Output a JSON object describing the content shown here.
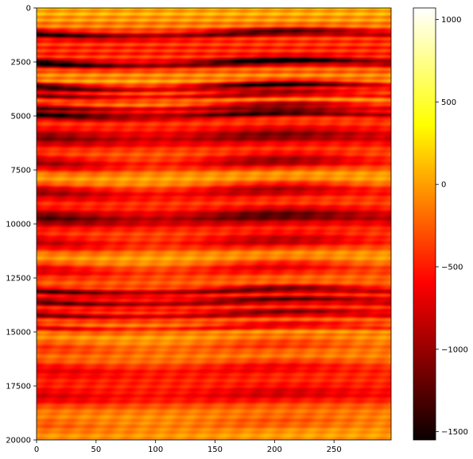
{
  "chart_data": {
    "type": "heatmap",
    "title": "",
    "xlabel": "",
    "ylabel": "",
    "colormap": "hot",
    "x_range": [
      0,
      298
    ],
    "y_range": [
      0,
      20000
    ],
    "y_axis_inverted": true,
    "x_ticks": [
      0,
      50,
      100,
      150,
      200,
      250
    ],
    "x_tick_labels": [
      "0",
      "50",
      "100",
      "150",
      "200",
      "250"
    ],
    "y_ticks": [
      0,
      2500,
      5000,
      7500,
      10000,
      12500,
      15000,
      17500,
      20000
    ],
    "y_tick_labels": [
      "0",
      "2500",
      "5000",
      "7500",
      "10000",
      "12500",
      "15000",
      "17500",
      "20000"
    ],
    "colorbar": {
      "min": -1550,
      "max": 1070,
      "ticks": [
        1000,
        500,
        0,
        -500,
        -1000,
        -1500
      ],
      "tick_labels": [
        "1000",
        "500",
        "0",
        "−500",
        "−1000",
        "−1500"
      ]
    },
    "bands": [
      {
        "y": 1200,
        "value": -1100
      },
      {
        "y": 2550,
        "value": -1300
      },
      {
        "y": 3650,
        "value": -1500
      },
      {
        "y": 4050,
        "value": -1100
      },
      {
        "y": 4600,
        "value": -1000
      },
      {
        "y": 4950,
        "value": -1200
      },
      {
        "y": 6000,
        "value": -650
      },
      {
        "y": 7200,
        "value": -900
      },
      {
        "y": 8500,
        "value": -850
      },
      {
        "y": 9700,
        "value": -800
      },
      {
        "y": 10900,
        "value": -700
      },
      {
        "y": 12100,
        "value": -700
      },
      {
        "y": 13100,
        "value": -900
      },
      {
        "y": 13600,
        "value": -800
      },
      {
        "y": 14200,
        "value": -750
      },
      {
        "y": 14800,
        "value": -600
      },
      {
        "y": 15700,
        "value": -450
      },
      {
        "y": 16700,
        "value": -400
      },
      {
        "y": 18000,
        "value": -350
      },
      {
        "y": 19300,
        "value": -300
      }
    ]
  }
}
